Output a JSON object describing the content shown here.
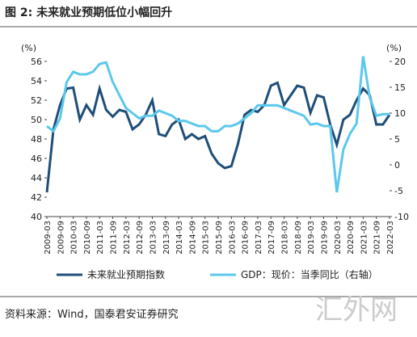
{
  "chart_data": {
    "type": "line",
    "title": "图 2: 未来就业预期低位小幅回升",
    "y_unit": "(%)",
    "y2_unit": "(%)",
    "source": "资料来源：Wind，国泰君安证券研究",
    "watermark": "汇外网",
    "categories": [
      "2009-03",
      null,
      "2009-09",
      null,
      "2010-03",
      null,
      "2010-09",
      null,
      "2011-03",
      null,
      "2011-09",
      null,
      "2012-03",
      null,
      "2012-09",
      null,
      "2013-03",
      null,
      "2013-09",
      null,
      "2014-03",
      null,
      "2014-09",
      null,
      "2015-03",
      null,
      "2015-09",
      null,
      "2016-03",
      null,
      "2016-09",
      null,
      "2017-03",
      null,
      "2017-09",
      null,
      "2018-03",
      null,
      "2018-09",
      null,
      "2019-03",
      null,
      "2019-09",
      null,
      "2020-03",
      null,
      "2020-09",
      null,
      "2021-03",
      null,
      "2021-09",
      null,
      "2022-03"
    ],
    "series": [
      {
        "name": "未来就业预期指数",
        "color": "#1f4e79",
        "values": [
          42.5,
          49,
          51.5,
          53.2,
          53.3,
          50,
          51.5,
          50.5,
          53.2,
          51,
          50.3,
          51,
          50.8,
          49,
          49.5,
          50.5,
          52,
          48.5,
          48.3,
          49.5,
          50,
          48,
          48.5,
          48,
          48.3,
          46.5,
          45.5,
          45,
          45.2,
          47.5,
          50.5,
          51,
          50.8,
          51.5,
          53.5,
          53.8,
          51.5,
          52.5,
          53.5,
          53.3,
          50.7,
          52.5,
          52.3,
          49.5,
          47.4,
          50,
          50.5,
          52,
          53.2,
          52.5,
          49.5,
          49.5,
          50.5
        ]
      },
      {
        "name": "GDP：现价：当季同比（右轴）",
        "color": "#5bc8ec",
        "axis": "y2",
        "values": [
          7.5,
          6.5,
          9,
          16,
          18,
          17.5,
          17.5,
          18,
          19.5,
          19.8,
          16,
          13.5,
          11,
          10,
          9,
          9.5,
          9.5,
          10.5,
          10,
          9.5,
          8.5,
          8.5,
          8,
          7.5,
          7.5,
          6.5,
          6.5,
          7.5,
          7.5,
          8,
          9,
          10,
          11.5,
          11.5,
          11.5,
          11.5,
          11,
          10.5,
          10,
          9.5,
          7.8,
          8,
          7.5,
          7.5,
          -5.3,
          3,
          6,
          8,
          21,
          13,
          9.5,
          9.8,
          9.8
        ]
      }
    ],
    "ylim": [
      40,
      56
    ],
    "yticks": [
      40,
      42,
      44,
      46,
      48,
      50,
      52,
      54,
      56
    ],
    "y2lim": [
      -10,
      20
    ],
    "y2ticks": [
      -10,
      -5,
      0,
      5,
      10,
      15,
      20
    ]
  }
}
